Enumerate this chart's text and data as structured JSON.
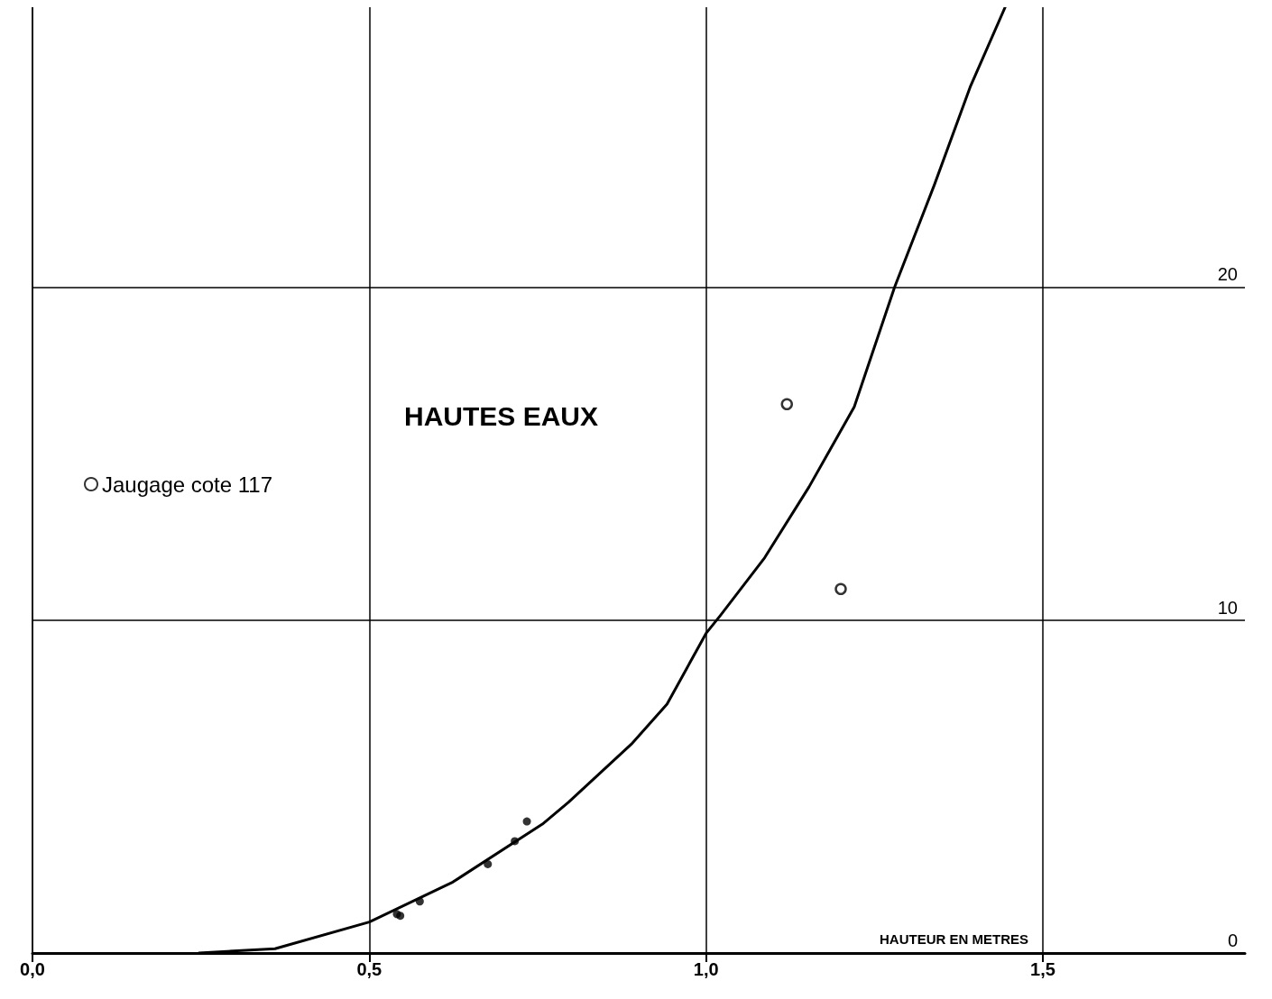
{
  "chart_data": {
    "type": "scatter",
    "xlabel": "HAUTEUR EN METRES",
    "annotations": [
      "HAUTES EAUX"
    ],
    "xlim": [
      0,
      1.8
    ],
    "xticks": [
      {
        "value": 0,
        "label": "0,0"
      },
      {
        "value": 0.5,
        "label": "0,5"
      },
      {
        "value": 1,
        "label": "1,0"
      },
      {
        "value": 1.5,
        "label": "1,5"
      }
    ],
    "ylim": [
      0,
      28.4
    ],
    "yticks": [
      0,
      10,
      20
    ],
    "grid": true,
    "legend": "left",
    "series": [
      {
        "type": "line",
        "color": "#000000",
        "marker": "none",
        "line_style": "solid",
        "x": [
          0.247,
          0.36,
          0.5,
          0.624,
          0.757,
          0.796,
          0.889,
          0.942,
          1.0,
          1.021,
          1.087,
          1.153,
          1.22,
          1.28,
          1.339,
          1.392,
          1.444
        ],
        "values": [
          0,
          0.13,
          0.93,
          2.13,
          3.87,
          4.53,
          6.27,
          7.47,
          9.6,
          10.13,
          11.87,
          14.0,
          16.4,
          20,
          23.07,
          26.0,
          28.4
        ]
      },
      {
        "color": "#000000",
        "marker": "circle",
        "x": [
          0.541,
          0.546,
          0.575,
          0.676,
          0.716,
          0.734
        ],
        "values": [
          1.17,
          1.12,
          1.55,
          2.67,
          3.36,
          3.95
        ]
      },
      {
        "name": "Jaugage cote 117",
        "color": "#000000",
        "marker": "circle",
        "x": [
          1.12,
          1.2
        ],
        "values": [
          16.48,
          10.93
        ]
      }
    ]
  }
}
